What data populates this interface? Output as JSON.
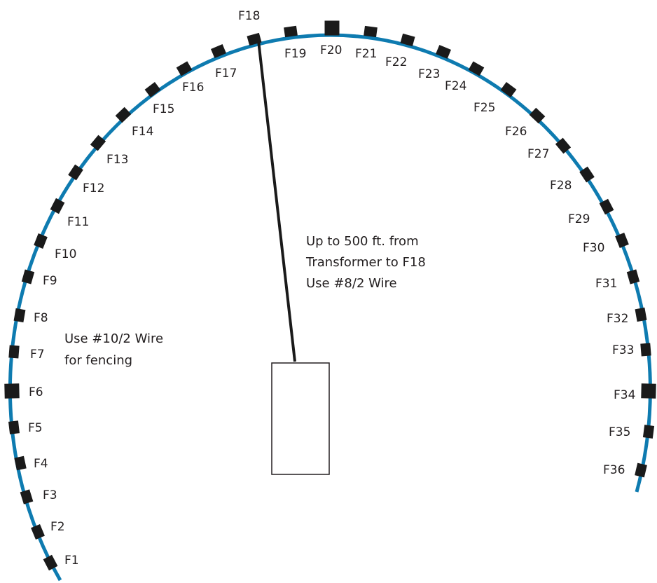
{
  "colors": {
    "fence_line": "#0e7bb0",
    "fixture": "#1a1a1a",
    "feed_wire": "#1a1a1a",
    "text": "#231f20"
  },
  "fixtures": [
    "F1",
    "F2",
    "F3",
    "F4",
    "F5",
    "F6",
    "F7",
    "F8",
    "F9",
    "F10",
    "F11",
    "F12",
    "F13",
    "F14",
    "F15",
    "F16",
    "F17",
    "F18",
    "F19",
    "F20",
    "F21",
    "F22",
    "F23",
    "F24",
    "F25",
    "F26",
    "F27",
    "F28",
    "F29",
    "F30",
    "F31",
    "F32",
    "F33",
    "F34",
    "F35",
    "F36"
  ],
  "feed_note": {
    "line1": "Up to 500 ft. from",
    "line2": "Transformer to F18",
    "line3": "Use #8/2 Wire"
  },
  "fence_note": {
    "line1": "Use #10/2 Wire",
    "line2": "for fencing"
  }
}
